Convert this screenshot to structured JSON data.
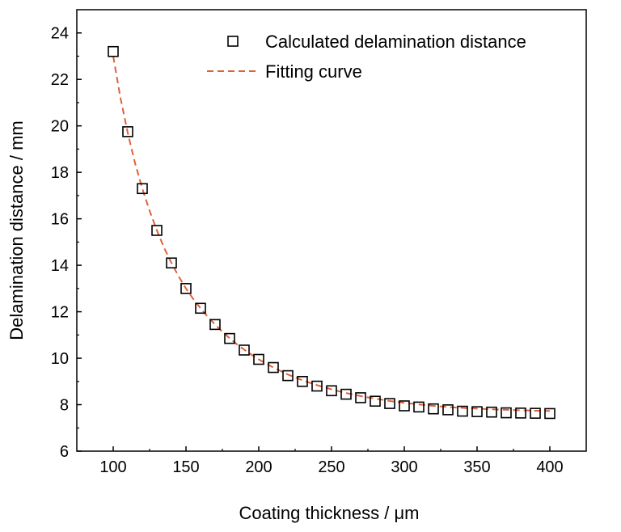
{
  "chart_data": {
    "type": "scatter",
    "xlabel": "Coating thickness / μm",
    "ylabel": "Delamination distance / mm",
    "xlim": [
      75,
      425
    ],
    "ylim": [
      6,
      25
    ],
    "xticks": [
      100,
      150,
      200,
      250,
      300,
      350,
      400
    ],
    "yticks": [
      6,
      8,
      10,
      12,
      14,
      16,
      18,
      20,
      22,
      24
    ],
    "grid": false,
    "legend_position": "top-right",
    "series": [
      {
        "name": "Calculated delamination distance",
        "kind": "markers",
        "marker": "open-square",
        "color": "#000000",
        "x": [
          100,
          110,
          120,
          130,
          140,
          150,
          160,
          170,
          180,
          190,
          200,
          210,
          220,
          230,
          240,
          250,
          260,
          270,
          280,
          290,
          300,
          310,
          320,
          330,
          340,
          350,
          360,
          370,
          380,
          390,
          400
        ],
        "y": [
          23.2,
          19.75,
          17.3,
          15.5,
          14.1,
          13.0,
          12.15,
          11.45,
          10.85,
          10.35,
          9.95,
          9.6,
          9.25,
          9.0,
          8.8,
          8.6,
          8.45,
          8.3,
          8.15,
          8.05,
          7.95,
          7.9,
          7.82,
          7.78,
          7.72,
          7.7,
          7.68,
          7.65,
          7.64,
          7.63,
          7.62
        ]
      },
      {
        "name": "Fitting curve",
        "kind": "dashed-line",
        "color": "#e0603a",
        "x": [
          100,
          105,
          110,
          115,
          120,
          125,
          130,
          135,
          140,
          145,
          150,
          155,
          160,
          165,
          170,
          175,
          180,
          185,
          190,
          195,
          200,
          210,
          220,
          230,
          240,
          250,
          260,
          270,
          280,
          290,
          300,
          310,
          320,
          330,
          340,
          350,
          360,
          370,
          380,
          390,
          400
        ],
        "y": [
          23.0,
          21.2,
          19.7,
          18.4,
          17.3,
          16.35,
          15.5,
          14.75,
          14.1,
          13.52,
          13.0,
          12.55,
          12.15,
          11.78,
          11.45,
          11.14,
          10.86,
          10.6,
          10.37,
          10.15,
          9.95,
          9.6,
          9.3,
          9.05,
          8.84,
          8.66,
          8.5,
          8.37,
          8.26,
          8.16,
          8.08,
          8.01,
          7.95,
          7.9,
          7.86,
          7.83,
          7.8,
          7.78,
          7.76,
          7.74,
          7.73
        ]
      }
    ]
  }
}
